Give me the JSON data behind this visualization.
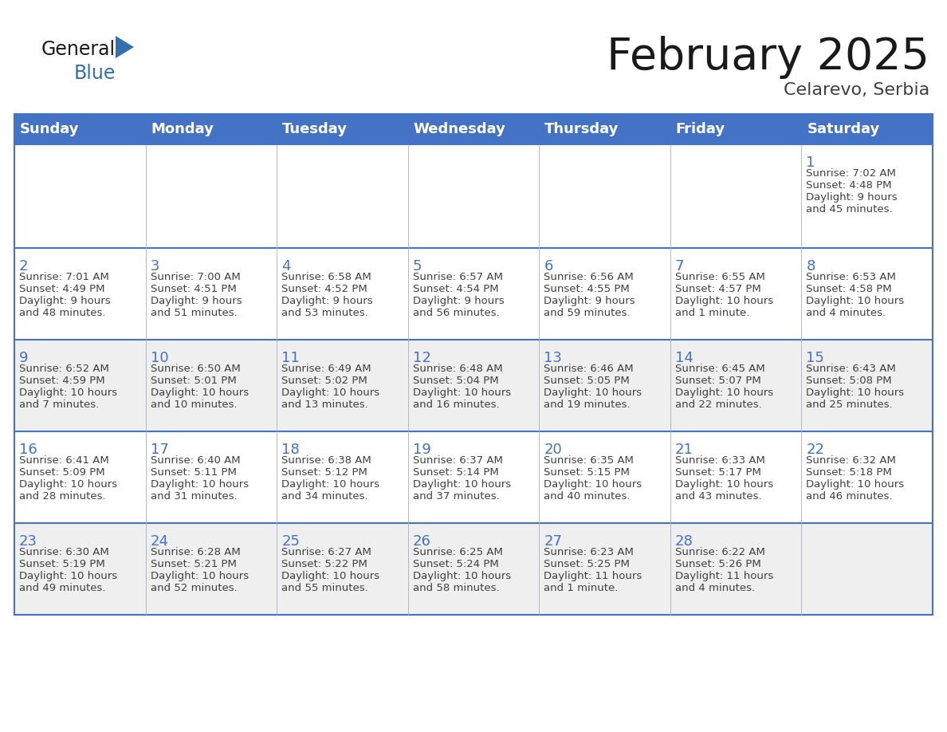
{
  "title": "February 2025",
  "subtitle": "Celarevo, Serbia",
  "header_bg": "#4472C4",
  "header_text_color": "#FFFFFF",
  "day_names": [
    "Sunday",
    "Monday",
    "Tuesday",
    "Wednesday",
    "Thursday",
    "Friday",
    "Saturday"
  ],
  "cell_bg_row0": "#FFFFFF",
  "cell_bg_row1": "#FFFFFF",
  "cell_bg_row2": "#EFEFEF",
  "cell_bg_row3": "#FFFFFF",
  "cell_bg_row4": "#EFEFEF",
  "cell_bg_row5": "#FFFFFF",
  "cell_border_color": "#4472C4",
  "day_number_color": "#4472C4",
  "info_text_color": "#404040",
  "calendar": [
    [
      null,
      null,
      null,
      null,
      null,
      null,
      {
        "day": "1",
        "sunrise": "7:02 AM",
        "sunset": "4:48 PM",
        "daylight_line1": "9 hours",
        "daylight_line2": "and 45 minutes."
      }
    ],
    [
      {
        "day": "2",
        "sunrise": "7:01 AM",
        "sunset": "4:49 PM",
        "daylight_line1": "9 hours",
        "daylight_line2": "and 48 minutes."
      },
      {
        "day": "3",
        "sunrise": "7:00 AM",
        "sunset": "4:51 PM",
        "daylight_line1": "9 hours",
        "daylight_line2": "and 51 minutes."
      },
      {
        "day": "4",
        "sunrise": "6:58 AM",
        "sunset": "4:52 PM",
        "daylight_line1": "9 hours",
        "daylight_line2": "and 53 minutes."
      },
      {
        "day": "5",
        "sunrise": "6:57 AM",
        "sunset": "4:54 PM",
        "daylight_line1": "9 hours",
        "daylight_line2": "and 56 minutes."
      },
      {
        "day": "6",
        "sunrise": "6:56 AM",
        "sunset": "4:55 PM",
        "daylight_line1": "9 hours",
        "daylight_line2": "and 59 minutes."
      },
      {
        "day": "7",
        "sunrise": "6:55 AM",
        "sunset": "4:57 PM",
        "daylight_line1": "10 hours",
        "daylight_line2": "and 1 minute."
      },
      {
        "day": "8",
        "sunrise": "6:53 AM",
        "sunset": "4:58 PM",
        "daylight_line1": "10 hours",
        "daylight_line2": "and 4 minutes."
      }
    ],
    [
      {
        "day": "9",
        "sunrise": "6:52 AM",
        "sunset": "4:59 PM",
        "daylight_line1": "10 hours",
        "daylight_line2": "and 7 minutes."
      },
      {
        "day": "10",
        "sunrise": "6:50 AM",
        "sunset": "5:01 PM",
        "daylight_line1": "10 hours",
        "daylight_line2": "and 10 minutes."
      },
      {
        "day": "11",
        "sunrise": "6:49 AM",
        "sunset": "5:02 PM",
        "daylight_line1": "10 hours",
        "daylight_line2": "and 13 minutes."
      },
      {
        "day": "12",
        "sunrise": "6:48 AM",
        "sunset": "5:04 PM",
        "daylight_line1": "10 hours",
        "daylight_line2": "and 16 minutes."
      },
      {
        "day": "13",
        "sunrise": "6:46 AM",
        "sunset": "5:05 PM",
        "daylight_line1": "10 hours",
        "daylight_line2": "and 19 minutes."
      },
      {
        "day": "14",
        "sunrise": "6:45 AM",
        "sunset": "5:07 PM",
        "daylight_line1": "10 hours",
        "daylight_line2": "and 22 minutes."
      },
      {
        "day": "15",
        "sunrise": "6:43 AM",
        "sunset": "5:08 PM",
        "daylight_line1": "10 hours",
        "daylight_line2": "and 25 minutes."
      }
    ],
    [
      {
        "day": "16",
        "sunrise": "6:41 AM",
        "sunset": "5:09 PM",
        "daylight_line1": "10 hours",
        "daylight_line2": "and 28 minutes."
      },
      {
        "day": "17",
        "sunrise": "6:40 AM",
        "sunset": "5:11 PM",
        "daylight_line1": "10 hours",
        "daylight_line2": "and 31 minutes."
      },
      {
        "day": "18",
        "sunrise": "6:38 AM",
        "sunset": "5:12 PM",
        "daylight_line1": "10 hours",
        "daylight_line2": "and 34 minutes."
      },
      {
        "day": "19",
        "sunrise": "6:37 AM",
        "sunset": "5:14 PM",
        "daylight_line1": "10 hours",
        "daylight_line2": "and 37 minutes."
      },
      {
        "day": "20",
        "sunrise": "6:35 AM",
        "sunset": "5:15 PM",
        "daylight_line1": "10 hours",
        "daylight_line2": "and 40 minutes."
      },
      {
        "day": "21",
        "sunrise": "6:33 AM",
        "sunset": "5:17 PM",
        "daylight_line1": "10 hours",
        "daylight_line2": "and 43 minutes."
      },
      {
        "day": "22",
        "sunrise": "6:32 AM",
        "sunset": "5:18 PM",
        "daylight_line1": "10 hours",
        "daylight_line2": "and 46 minutes."
      }
    ],
    [
      {
        "day": "23",
        "sunrise": "6:30 AM",
        "sunset": "5:19 PM",
        "daylight_line1": "10 hours",
        "daylight_line2": "and 49 minutes."
      },
      {
        "day": "24",
        "sunrise": "6:28 AM",
        "sunset": "5:21 PM",
        "daylight_line1": "10 hours",
        "daylight_line2": "and 52 minutes."
      },
      {
        "day": "25",
        "sunrise": "6:27 AM",
        "sunset": "5:22 PM",
        "daylight_line1": "10 hours",
        "daylight_line2": "and 55 minutes."
      },
      {
        "day": "26",
        "sunrise": "6:25 AM",
        "sunset": "5:24 PM",
        "daylight_line1": "10 hours",
        "daylight_line2": "and 58 minutes."
      },
      {
        "day": "27",
        "sunrise": "6:23 AM",
        "sunset": "5:25 PM",
        "daylight_line1": "11 hours",
        "daylight_line2": "and 1 minute."
      },
      {
        "day": "28",
        "sunrise": "6:22 AM",
        "sunset": "5:26 PM",
        "daylight_line1": "11 hours",
        "daylight_line2": "and 4 minutes."
      },
      null
    ]
  ],
  "row_bg_colors": [
    "#FFFFFF",
    "#FFFFFF",
    "#EFEFEF",
    "#FFFFFF",
    "#EFEFEF"
  ],
  "logo_general_color": "#1a1a1a",
  "logo_blue_color": "#3370B0",
  "logo_triangle_color": "#3370B0",
  "title_color": "#1a1a1a",
  "subtitle_color": "#404040"
}
